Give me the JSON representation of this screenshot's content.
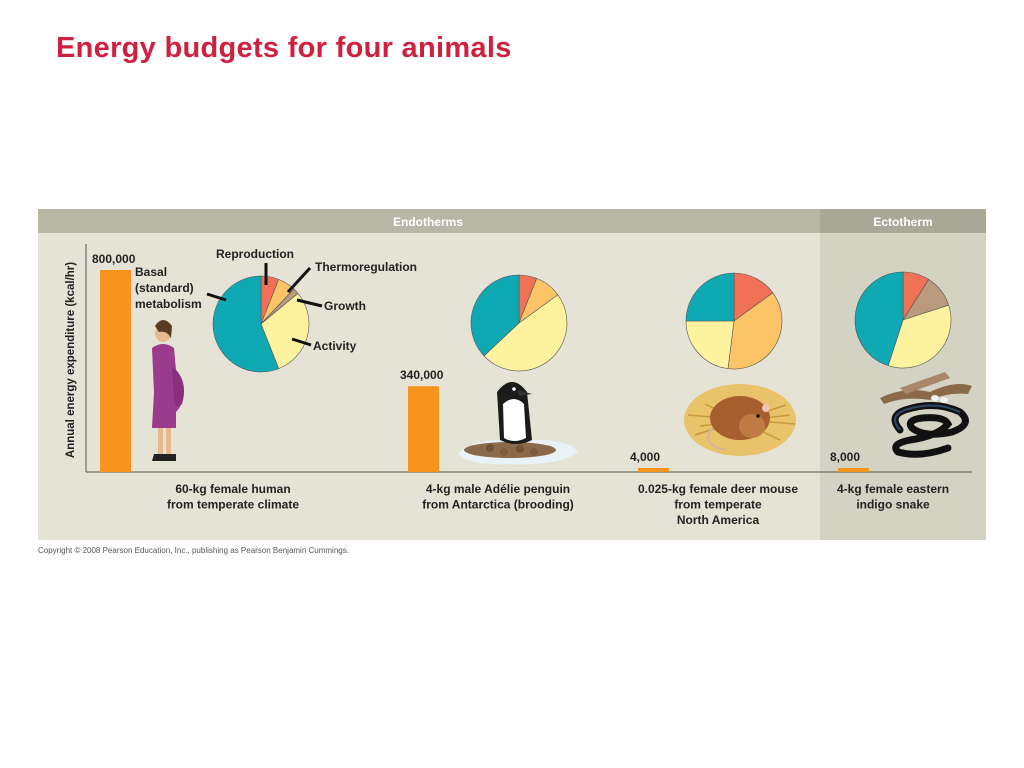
{
  "title": "Energy budgets for four animals",
  "copyright": "Copyright © 2008 Pearson Education, Inc., publishing as Pearson Benjamin Cummings.",
  "colors": {
    "basal": "#0fa9b4",
    "reproduction": "#f07155",
    "thermoregulation": "#fbc467",
    "growth": "#b89a7c",
    "activity": "#fdf29d",
    "bar": "#f7941d",
    "panel": "#e5e3d6",
    "header": "#b8b6a4"
  },
  "chart_data": {
    "type": "bar",
    "title": "Energy budgets for four animals",
    "ylabel": "Annual energy expenditure (kcal/hr)",
    "ylim": [
      0,
      800000
    ],
    "groups": [
      {
        "name": "Endotherms",
        "members": [
          0,
          1,
          2
        ]
      },
      {
        "name": "Ectotherm",
        "members": [
          3
        ]
      }
    ],
    "categories": [
      {
        "line1": "60-kg female human",
        "line2": "from temperate climate",
        "line3": ""
      },
      {
        "line1": "4-kg male Adélie penguin",
        "line2": "from Antarctica (brooding)",
        "line3": ""
      },
      {
        "line1": "0.025-kg female deer mouse",
        "line2": "from temperate",
        "line3": "North America"
      },
      {
        "line1": "4-kg female eastern",
        "line2": "indigo snake",
        "line3": ""
      }
    ],
    "values": [
      800000,
      340000,
      4000,
      8000
    ],
    "value_labels": [
      "800,000",
      "340,000",
      "4,000",
      "8,000"
    ],
    "pie_slices": [
      [
        {
          "component": "reproduction",
          "value": 6
        },
        {
          "component": "thermoregulation",
          "value": 6
        },
        {
          "component": "growth",
          "value": 2
        },
        {
          "component": "activity",
          "value": 30
        },
        {
          "component": "basal",
          "value": 56
        }
      ],
      [
        {
          "component": "reproduction",
          "value": 6
        },
        {
          "component": "thermoregulation",
          "value": 9
        },
        {
          "component": "activity",
          "value": 48
        },
        {
          "component": "basal",
          "value": 37
        }
      ],
      [
        {
          "component": "reproduction",
          "value": 15
        },
        {
          "component": "thermoregulation",
          "value": 37
        },
        {
          "component": "activity",
          "value": 23
        },
        {
          "component": "basal",
          "value": 25
        }
      ],
      [
        {
          "component": "reproduction",
          "value": 9
        },
        {
          "component": "growth",
          "value": 11
        },
        {
          "component": "activity",
          "value": 35
        },
        {
          "component": "basal",
          "value": 45
        }
      ]
    ],
    "legend_labels": {
      "reproduction": "Reproduction",
      "thermoregulation": "Thermoregulation",
      "growth": "Growth",
      "activity": "Activity",
      "basal_1": "Basal",
      "basal_2": "(standard)",
      "basal_3": "metabolism"
    }
  }
}
